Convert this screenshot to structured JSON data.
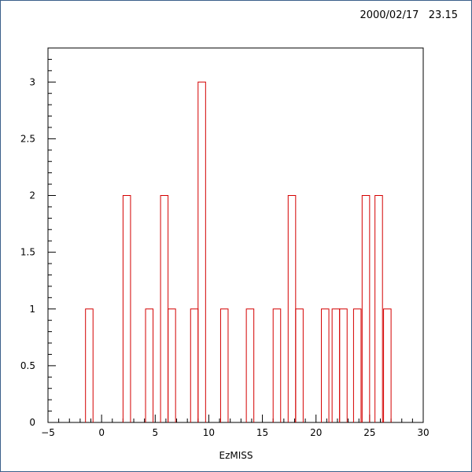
{
  "header": {
    "timestamp": "2000/02/17   23.15"
  },
  "chart_data": {
    "type": "bar",
    "style": "histogram-step",
    "title": "",
    "xlabel": "EzMISS",
    "ylabel": "",
    "xlim": [
      -5,
      30
    ],
    "ylim": [
      0,
      3.3
    ],
    "bin_width": 0.7,
    "xticks": [
      -5,
      0,
      5,
      10,
      15,
      20,
      25,
      30
    ],
    "xtick_labels": [
      "−5",
      "0",
      "5",
      "10",
      "15",
      "20",
      "25",
      "30"
    ],
    "yticks": [
      0,
      0.5,
      1,
      1.5,
      2,
      2.5,
      3
    ],
    "ytick_labels": [
      "0",
      "0.5",
      "1",
      "1.5",
      "2",
      "2.5",
      "3"
    ],
    "line_color": "#d40000",
    "bins": [
      {
        "x0": -1.5,
        "count": 1
      },
      {
        "x0": 2.0,
        "count": 2
      },
      {
        "x0": 4.1,
        "count": 1
      },
      {
        "x0": 5.5,
        "count": 2
      },
      {
        "x0": 6.2,
        "count": 1
      },
      {
        "x0": 8.3,
        "count": 1
      },
      {
        "x0": 9.0,
        "count": 3
      },
      {
        "x0": 11.1,
        "count": 1
      },
      {
        "x0": 13.5,
        "count": 1
      },
      {
        "x0": 16.0,
        "count": 1
      },
      {
        "x0": 17.4,
        "count": 2
      },
      {
        "x0": 18.1,
        "count": 1
      },
      {
        "x0": 20.5,
        "count": 1
      },
      {
        "x0": 21.5,
        "count": 1
      },
      {
        "x0": 22.2,
        "count": 1
      },
      {
        "x0": 23.5,
        "count": 1
      },
      {
        "x0": 24.3,
        "count": 2
      },
      {
        "x0": 25.5,
        "count": 2
      },
      {
        "x0": 26.3,
        "count": 1
      }
    ]
  }
}
